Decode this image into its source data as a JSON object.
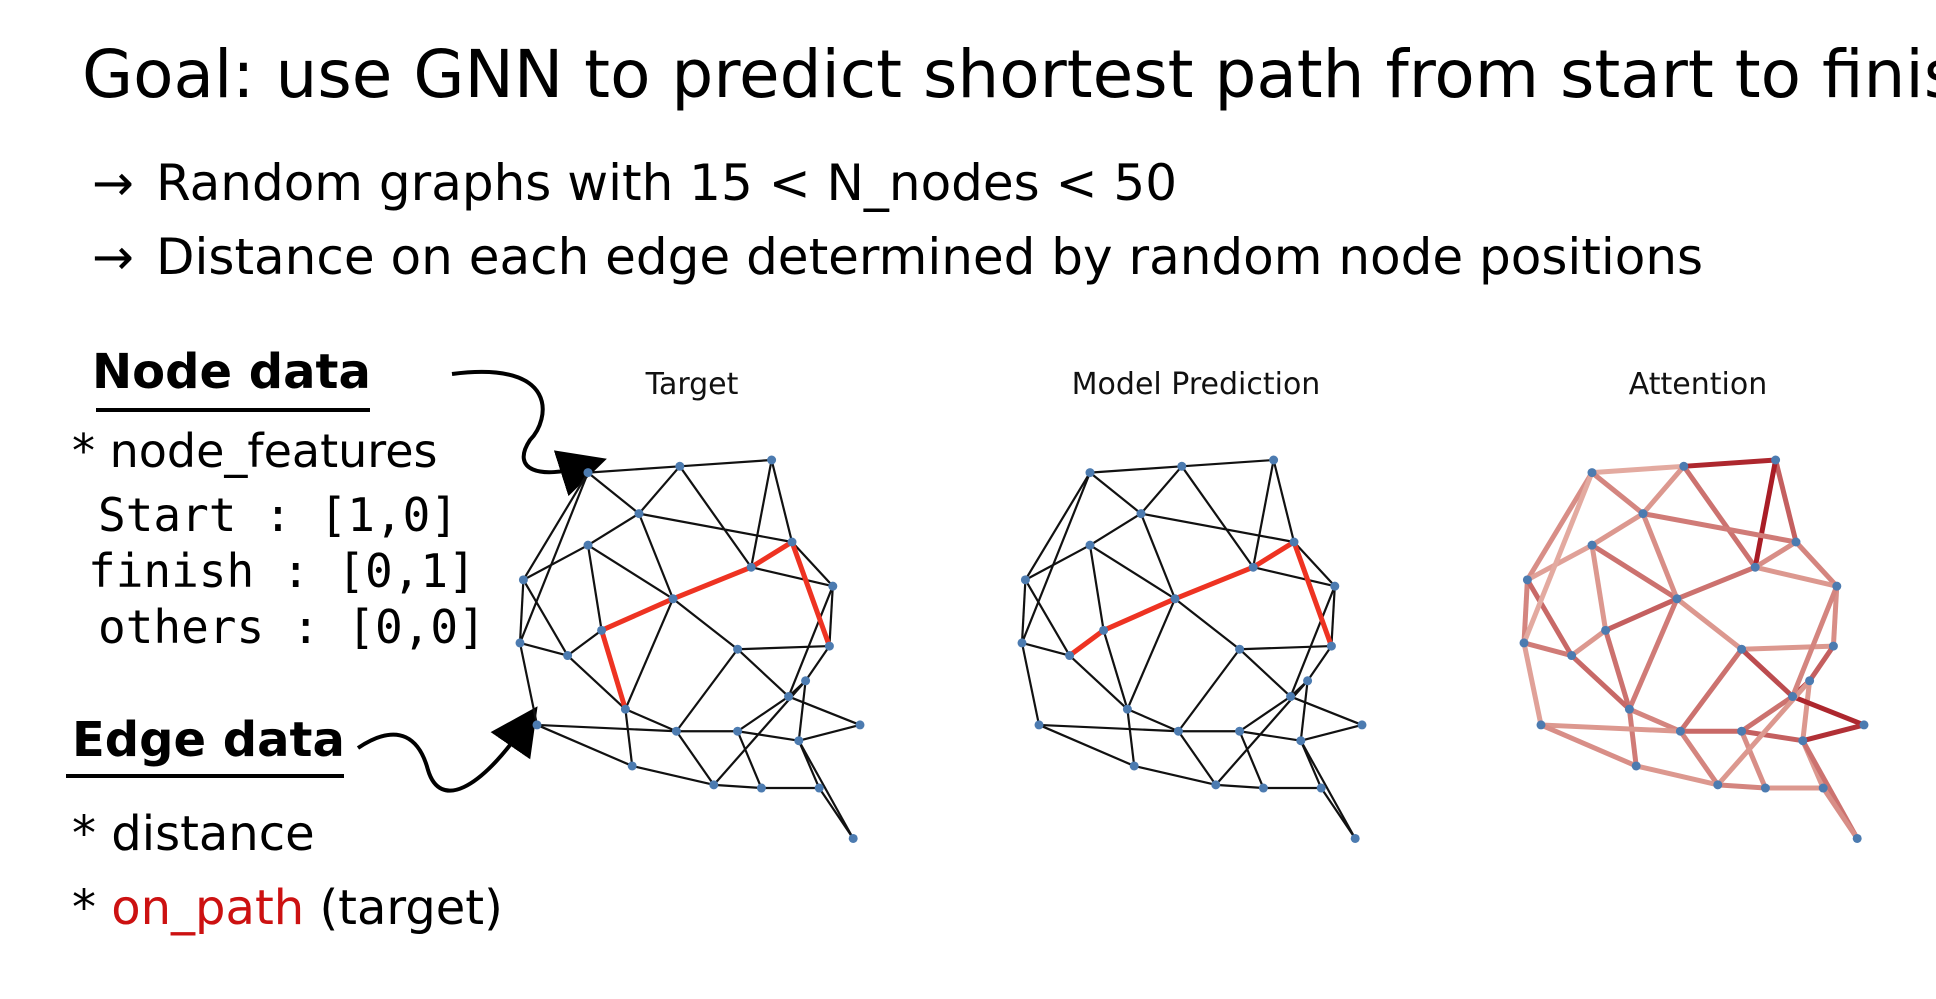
{
  "goal": "Goal: use GNN to predict shortest path from start to finish",
  "bullets": {
    "b1": "Random graphs with 15 < N_nodes < 50",
    "b2": "Distance on each edge determined by random node positions",
    "arrow": "→"
  },
  "node_data": {
    "title": "Node data",
    "features": "* node_features",
    "start": "Start : [1,0]",
    "finish": "finish : [0,1]",
    "others": "others : [0,0]"
  },
  "edge_data": {
    "title": "Edge data",
    "distance": "* distance",
    "star": "*",
    "on_path": "on_path",
    "on_path_suffix": "(target)"
  },
  "panels": {
    "target": "Target",
    "prediction": "Model Prediction",
    "attention": "Attention"
  },
  "colors": {
    "node": "#4c7bb0",
    "edge": "#111111",
    "path": "#ee3322",
    "attention_high": "#a5141e",
    "attention_low": "#f3d0c0"
  },
  "graph": {
    "nodes": [
      [
        0.2,
        0.04
      ],
      [
        0.47,
        0.02
      ],
      [
        0.74,
        0.0
      ],
      [
        0.35,
        0.17
      ],
      [
        0.2,
        0.27
      ],
      [
        0.01,
        0.38
      ],
      [
        0.8,
        0.26
      ],
      [
        0.68,
        0.34
      ],
      [
        0.92,
        0.4
      ],
      [
        0.45,
        0.44
      ],
      [
        0.0,
        0.58
      ],
      [
        0.24,
        0.54
      ],
      [
        0.14,
        0.62
      ],
      [
        0.64,
        0.6
      ],
      [
        0.91,
        0.59
      ],
      [
        0.84,
        0.7
      ],
      [
        0.79,
        0.75
      ],
      [
        0.31,
        0.79
      ],
      [
        0.05,
        0.84
      ],
      [
        0.46,
        0.86
      ],
      [
        0.64,
        0.86
      ],
      [
        1.0,
        0.84
      ],
      [
        0.82,
        0.89
      ],
      [
        0.33,
        0.97
      ],
      [
        0.57,
        1.03
      ],
      [
        0.71,
        1.04
      ],
      [
        0.88,
        1.04
      ],
      [
        0.98,
        1.2
      ]
    ],
    "edges": [
      [
        0,
        1
      ],
      [
        1,
        2
      ],
      [
        0,
        5
      ],
      [
        0,
        3
      ],
      [
        1,
        3
      ],
      [
        1,
        7
      ],
      [
        2,
        6
      ],
      [
        2,
        7
      ],
      [
        3,
        4
      ],
      [
        3,
        6
      ],
      [
        4,
        5
      ],
      [
        4,
        9
      ],
      [
        4,
        11
      ],
      [
        5,
        10
      ],
      [
        5,
        12
      ],
      [
        0,
        10
      ],
      [
        6,
        8
      ],
      [
        6,
        7
      ],
      [
        7,
        8
      ],
      [
        7,
        9
      ],
      [
        9,
        11
      ],
      [
        9,
        13
      ],
      [
        11,
        12
      ],
      [
        10,
        12
      ],
      [
        10,
        18
      ],
      [
        11,
        17
      ],
      [
        12,
        17
      ],
      [
        13,
        14
      ],
      [
        13,
        16
      ],
      [
        8,
        14
      ],
      [
        14,
        15
      ],
      [
        15,
        16
      ],
      [
        15,
        22
      ],
      [
        16,
        21
      ],
      [
        16,
        20
      ],
      [
        17,
        19
      ],
      [
        17,
        23
      ],
      [
        18,
        19
      ],
      [
        18,
        23
      ],
      [
        19,
        20
      ],
      [
        19,
        24
      ],
      [
        20,
        22
      ],
      [
        20,
        25
      ],
      [
        21,
        22
      ],
      [
        22,
        26
      ],
      [
        22,
        27
      ],
      [
        24,
        25
      ],
      [
        25,
        26
      ],
      [
        26,
        27
      ],
      [
        13,
        19
      ],
      [
        9,
        17
      ],
      [
        15,
        24
      ],
      [
        8,
        16
      ],
      [
        3,
        9
      ],
      [
        23,
        24
      ]
    ],
    "path_target": [
      [
        11,
        17
      ],
      [
        11,
        9
      ],
      [
        9,
        7
      ],
      [
        7,
        6
      ],
      [
        6,
        14
      ]
    ],
    "path_pred": [
      [
        12,
        11
      ],
      [
        11,
        9
      ],
      [
        9,
        7
      ],
      [
        7,
        6
      ],
      [
        6,
        14
      ]
    ],
    "attention": [
      0.2,
      0.9,
      0.35,
      0.4,
      0.3,
      0.5,
      0.6,
      0.95,
      0.3,
      0.45,
      0.25,
      0.5,
      0.3,
      0.4,
      0.55,
      0.2,
      0.4,
      0.35,
      0.3,
      0.5,
      0.6,
      0.3,
      0.3,
      0.45,
      0.25,
      0.5,
      0.55,
      0.3,
      0.7,
      0.35,
      0.6,
      0.8,
      0.3,
      0.9,
      0.5,
      0.4,
      0.45,
      0.3,
      0.35,
      0.55,
      0.4,
      0.6,
      0.35,
      0.85,
      0.3,
      0.5,
      0.4,
      0.3,
      0.35,
      0.5,
      0.45,
      0.3,
      0.4,
      0.35,
      0.3
    ]
  }
}
